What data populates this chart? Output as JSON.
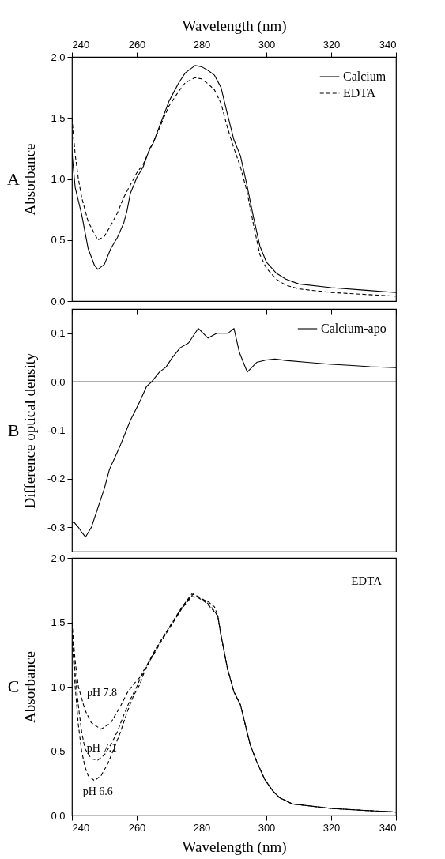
{
  "chart_data": [
    {
      "type": "line",
      "xlabel": "Wavelength (nm)",
      "ylabel": "Absorbance",
      "xlim": [
        240,
        340
      ],
      "xticks": [
        240,
        260,
        280,
        300,
        320,
        340
      ],
      "ylim": [
        0,
        2
      ],
      "yticks": [
        {
          "value": 0,
          "label": "0.0"
        },
        0.5,
        {
          "value": 1,
          "label": "1.0"
        },
        1.5,
        {
          "value": 2,
          "label": "2.0"
        }
      ],
      "legend": "top right",
      "annotations": [
        "A"
      ],
      "series": [
        {
          "name": "Calcium",
          "color": "#000000",
          "line_style": "solid",
          "x": [
            240,
            241,
            243,
            245,
            247,
            248,
            250,
            252,
            254,
            256,
            257,
            258,
            260,
            262,
            264,
            265,
            268,
            270,
            273,
            275,
            278,
            280,
            282,
            284,
            286,
            288,
            290,
            292,
            294,
            296,
            298,
            300,
            303,
            306,
            310,
            320,
            330,
            340
          ],
          "values": [
            1.22,
            0.93,
            0.71,
            0.43,
            0.29,
            0.26,
            0.3,
            0.43,
            0.52,
            0.64,
            0.74,
            0.88,
            1.01,
            1.1,
            1.25,
            1.29,
            1.5,
            1.64,
            1.79,
            1.87,
            1.93,
            1.92,
            1.89,
            1.85,
            1.75,
            1.53,
            1.32,
            1.19,
            0.95,
            0.69,
            0.45,
            0.32,
            0.23,
            0.18,
            0.14,
            0.11,
            0.09,
            0.07
          ]
        },
        {
          "name": "EDTA",
          "color": "#000000",
          "line_style": "dashed",
          "x": [
            240,
            241,
            242,
            243,
            245,
            247,
            248,
            250,
            252,
            254,
            256,
            258,
            260,
            262,
            264,
            266,
            268,
            270,
            273,
            275,
            278,
            280,
            282,
            284,
            286,
            288,
            290,
            292,
            294,
            296,
            298,
            300,
            303,
            306,
            310,
            320,
            330,
            340
          ],
          "values": [
            1.5,
            1.2,
            1.0,
            0.85,
            0.65,
            0.55,
            0.5,
            0.53,
            0.62,
            0.72,
            0.85,
            0.95,
            1.05,
            1.12,
            1.24,
            1.35,
            1.48,
            1.6,
            1.72,
            1.79,
            1.83,
            1.82,
            1.78,
            1.73,
            1.62,
            1.42,
            1.25,
            1.1,
            0.9,
            0.63,
            0.38,
            0.27,
            0.18,
            0.13,
            0.1,
            0.07,
            0.055,
            0.04
          ]
        }
      ]
    },
    {
      "type": "line",
      "ylabel": "Difference optical density",
      "xlim": [
        240,
        340
      ],
      "xticks": [
        240,
        260,
        280,
        300,
        320,
        340
      ],
      "ylim": [
        -0.35,
        0.15
      ],
      "yticks": [
        -0.3,
        -0.2,
        -0.1,
        {
          "value": 0,
          "label": "0.0"
        },
        0.1
      ],
      "tick_labels": "y",
      "legend": "top right",
      "annotations": [
        "B"
      ],
      "ref_lines": [
        {
          "axis": "y",
          "value": 0
        }
      ],
      "series": [
        {
          "name": "Calcium-apo",
          "color": "#000000",
          "line_style": "solid",
          "x": [
            240,
            240.7,
            242,
            243,
            244.2,
            246,
            248,
            250,
            251.6,
            253,
            255,
            258,
            261,
            263,
            264.6,
            267,
            269,
            271,
            273.4,
            276,
            279,
            282,
            284.7,
            288.2,
            290,
            291.7,
            294.1,
            297,
            300,
            302.6,
            306,
            312.6,
            320,
            325.6,
            332,
            340
          ],
          "values": [
            -0.29,
            -0.29,
            -0.3,
            -0.31,
            -0.32,
            -0.3,
            -0.26,
            -0.22,
            -0.18,
            -0.16,
            -0.13,
            -0.08,
            -0.04,
            -0.01,
            0.0,
            0.02,
            0.03,
            0.05,
            0.07,
            0.08,
            0.11,
            0.09,
            0.1,
            0.1,
            0.11,
            0.06,
            0.02,
            0.04,
            0.045,
            0.047,
            0.044,
            0.04,
            0.036,
            0.034,
            0.031,
            0.029
          ]
        }
      ]
    },
    {
      "type": "line",
      "xlabel": "Wavelength (nm)",
      "ylabel": "Absorbance",
      "xlim": [
        240,
        340
      ],
      "xticks": [
        240,
        260,
        280,
        300,
        320,
        340
      ],
      "ylim": [
        0,
        2
      ],
      "yticks": [
        {
          "value": 0,
          "label": "0.0"
        },
        0.5,
        {
          "value": 1,
          "label": "1.0"
        },
        1.5,
        {
          "value": 2,
          "label": "2.0"
        }
      ],
      "annotations": [
        "C",
        "EDTA"
      ],
      "series": [
        {
          "name": "pH 7.8",
          "color": "#000000",
          "line_style": "dashed",
          "x": [
            240,
            241,
            242,
            244,
            246,
            249,
            252,
            255,
            257,
            259,
            262,
            265,
            268,
            271,
            274,
            277,
            279,
            281,
            283,
            285,
            286,
            288,
            290,
            292,
            295,
            297,
            299.5,
            302,
            304,
            308,
            320,
            330,
            340
          ],
          "values": [
            1.5,
            1.2,
            1.0,
            0.82,
            0.72,
            0.67,
            0.72,
            0.85,
            0.95,
            1.02,
            1.1,
            1.25,
            1.38,
            1.5,
            1.62,
            1.72,
            1.7,
            1.67,
            1.62,
            1.55,
            1.4,
            1.14,
            0.96,
            0.86,
            0.55,
            0.42,
            0.28,
            0.19,
            0.14,
            0.09,
            0.055,
            0.04,
            0.027
          ]
        },
        {
          "name": "pH 7.1",
          "color": "#000000",
          "line_style": "dashed",
          "x": [
            240,
            241,
            242,
            243,
            244,
            246,
            248,
            250,
            252,
            254,
            256,
            258,
            260,
            262,
            265,
            268,
            271,
            274,
            277,
            279,
            281,
            283,
            285,
            286,
            288,
            290,
            292,
            295,
            297,
            299.5,
            302,
            304,
            308,
            320,
            330,
            340
          ],
          "values": [
            1.45,
            1.1,
            0.85,
            0.65,
            0.52,
            0.44,
            0.43,
            0.47,
            0.55,
            0.65,
            0.78,
            0.9,
            1.0,
            1.12,
            1.24,
            1.37,
            1.49,
            1.61,
            1.7,
            1.69,
            1.66,
            1.61,
            1.55,
            1.4,
            1.14,
            0.96,
            0.86,
            0.55,
            0.42,
            0.28,
            0.19,
            0.14,
            0.09,
            0.055,
            0.04,
            0.027
          ]
        },
        {
          "name": "pH 6.6",
          "color": "#000000",
          "line_style": "dashed",
          "x": [
            240,
            241,
            242,
            243,
            244,
            245,
            247,
            249,
            251,
            253,
            255,
            257,
            259,
            261,
            263,
            266,
            269,
            272,
            275,
            277.5,
            280,
            282,
            284,
            285,
            286,
            288,
            290,
            292,
            295,
            297,
            299.5,
            302,
            304,
            308,
            320,
            330,
            340
          ],
          "values": [
            1.4,
            1.0,
            0.7,
            0.5,
            0.38,
            0.31,
            0.27,
            0.31,
            0.4,
            0.52,
            0.65,
            0.8,
            0.93,
            1.02,
            1.16,
            1.3,
            1.42,
            1.54,
            1.65,
            1.72,
            1.68,
            1.66,
            1.62,
            1.55,
            1.4,
            1.14,
            0.96,
            0.86,
            0.55,
            0.42,
            0.28,
            0.19,
            0.14,
            0.09,
            0.055,
            0.04,
            0.027
          ]
        }
      ]
    }
  ]
}
